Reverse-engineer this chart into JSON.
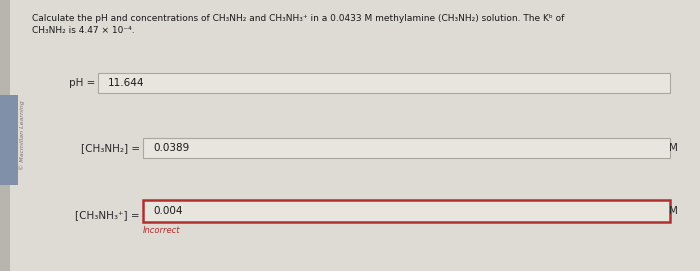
{
  "fig_bg_color": "#c9c5be",
  "panel_bg_color": "#dedad4",
  "title_line1": "Calculate the pH and concentrations of CH₃NH₂ and CH₃NH₃⁺ in a 0.0433 M methylamine (CH₃NH₂) solution. The Kᵇ of",
  "title_line2": "CH₃NH₂ is 4.47 × 10⁻⁴.",
  "watermark": "© Macmillan Learning",
  "row1_label": "pH =",
  "row1_value": "11.644",
  "row2_label": "[CH₃NH₂] =",
  "row2_value": "0.0389",
  "row2_unit": "M",
  "row3_label": "[CH₃NH₃⁺] =",
  "row3_value": "0.004",
  "row3_unit": "M",
  "row3_incorrect_text": "Incorrect",
  "box_fill": "#e8e4de",
  "box_edge_normal": "#aaa89e",
  "box_edge_incorrect": "#b03030",
  "text_dark": "#1a1a1a",
  "label_color": "#2a2a2a",
  "title_color": "#1a1a1a",
  "watermark_color": "#777777",
  "incorrect_color": "#b03030",
  "left_panel_color": "#b8b4ae"
}
